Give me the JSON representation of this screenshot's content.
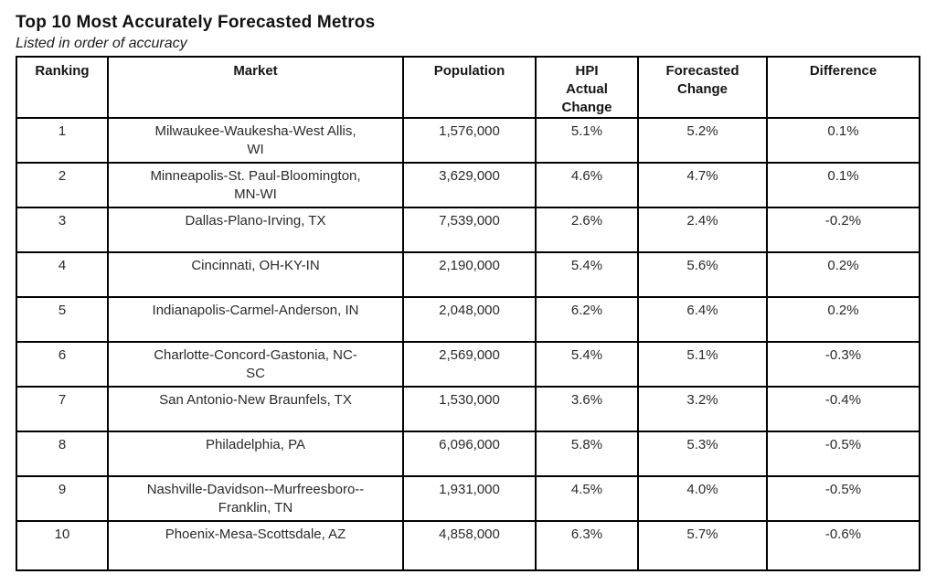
{
  "page": {
    "title": "Top 10 Most Accurately Forecasted Metros",
    "subtitle": "Listed in order of accuracy"
  },
  "table": {
    "headers": [
      "Ranking",
      "Market",
      "Population",
      "HPI\nActual\nChange",
      "Forecasted\nChange",
      "Difference"
    ],
    "rows": [
      {
        "ranking": "1",
        "market": "Milwaukee-Waukesha-West Allis,\nWI",
        "population": "1,576,000",
        "hpi_actual_change": "5.1%",
        "forecasted_change": "5.2%",
        "difference": "0.1%"
      },
      {
        "ranking": "2",
        "market": "Minneapolis-St. Paul-Bloomington,\nMN-WI",
        "population": "3,629,000",
        "hpi_actual_change": "4.6%",
        "forecasted_change": "4.7%",
        "difference": "0.1%"
      },
      {
        "ranking": "3",
        "market": "Dallas-Plano-Irving, TX",
        "population": "7,539,000",
        "hpi_actual_change": "2.6%",
        "forecasted_change": "2.4%",
        "difference": "-0.2%"
      },
      {
        "ranking": "4",
        "market": "Cincinnati, OH-KY-IN",
        "population": "2,190,000",
        "hpi_actual_change": "5.4%",
        "forecasted_change": "5.6%",
        "difference": "0.2%"
      },
      {
        "ranking": "5",
        "market": "Indianapolis-Carmel-Anderson, IN",
        "population": "2,048,000",
        "hpi_actual_change": "6.2%",
        "forecasted_change": "6.4%",
        "difference": "0.2%"
      },
      {
        "ranking": "6",
        "market": "Charlotte-Concord-Gastonia, NC-\nSC",
        "population": "2,569,000",
        "hpi_actual_change": "5.4%",
        "forecasted_change": "5.1%",
        "difference": "-0.3%"
      },
      {
        "ranking": "7",
        "market": "San Antonio-New Braunfels, TX",
        "population": "1,530,000",
        "hpi_actual_change": "3.6%",
        "forecasted_change": "3.2%",
        "difference": "-0.4%"
      },
      {
        "ranking": "8",
        "market": "Philadelphia, PA",
        "population": "6,096,000",
        "hpi_actual_change": "5.8%",
        "forecasted_change": "5.3%",
        "difference": "-0.5%"
      },
      {
        "ranking": "9",
        "market": "Nashville-Davidson--Murfreesboro--\nFranklin, TN",
        "population": "1,931,000",
        "hpi_actual_change": "4.5%",
        "forecasted_change": "4.0%",
        "difference": "-0.5%"
      },
      {
        "ranking": "10",
        "market": "Phoenix-Mesa-Scottsdale, AZ",
        "population": "4,858,000",
        "hpi_actual_change": "6.3%",
        "forecasted_change": "5.7%",
        "difference": "-0.6%"
      }
    ]
  },
  "chart_data": {
    "type": "table",
    "title": "Top 10 Most Accurately Forecasted Metros",
    "subtitle": "Listed in order of accuracy",
    "columns": [
      "Ranking",
      "Market",
      "Population",
      "HPI Actual Change",
      "Forecasted Change",
      "Difference"
    ],
    "rows": [
      {
        "ranking": 1,
        "market": "Milwaukee-Waukesha-West Allis, WI",
        "population": 1576000,
        "hpi_actual_change_pct": 5.1,
        "forecasted_change_pct": 5.2,
        "difference_pct": 0.1
      },
      {
        "ranking": 2,
        "market": "Minneapolis-St. Paul-Bloomington, MN-WI",
        "population": 3629000,
        "hpi_actual_change_pct": 4.6,
        "forecasted_change_pct": 4.7,
        "difference_pct": 0.1
      },
      {
        "ranking": 3,
        "market": "Dallas-Plano-Irving, TX",
        "population": 7539000,
        "hpi_actual_change_pct": 2.6,
        "forecasted_change_pct": 2.4,
        "difference_pct": -0.2
      },
      {
        "ranking": 4,
        "market": "Cincinnati, OH-KY-IN",
        "population": 2190000,
        "hpi_actual_change_pct": 5.4,
        "forecasted_change_pct": 5.6,
        "difference_pct": 0.2
      },
      {
        "ranking": 5,
        "market": "Indianapolis-Carmel-Anderson, IN",
        "population": 2048000,
        "hpi_actual_change_pct": 6.2,
        "forecasted_change_pct": 6.4,
        "difference_pct": 0.2
      },
      {
        "ranking": 6,
        "market": "Charlotte-Concord-Gastonia, NC-SC",
        "population": 2569000,
        "hpi_actual_change_pct": 5.4,
        "forecasted_change_pct": 5.1,
        "difference_pct": -0.3
      },
      {
        "ranking": 7,
        "market": "San Antonio-New Braunfels, TX",
        "population": 1530000,
        "hpi_actual_change_pct": 3.6,
        "forecasted_change_pct": 3.2,
        "difference_pct": -0.4
      },
      {
        "ranking": 8,
        "market": "Philadelphia, PA",
        "population": 6096000,
        "hpi_actual_change_pct": 5.8,
        "forecasted_change_pct": 5.3,
        "difference_pct": -0.5
      },
      {
        "ranking": 9,
        "market": "Nashville-Davidson--Murfreesboro--Franklin, TN",
        "population": 1931000,
        "hpi_actual_change_pct": 4.5,
        "forecasted_change_pct": 4.0,
        "difference_pct": -0.5
      },
      {
        "ranking": 10,
        "market": "Phoenix-Mesa-Scottsdale, AZ",
        "population": 4858000,
        "hpi_actual_change_pct": 6.3,
        "forecasted_change_pct": 5.7,
        "difference_pct": -0.6
      }
    ]
  }
}
